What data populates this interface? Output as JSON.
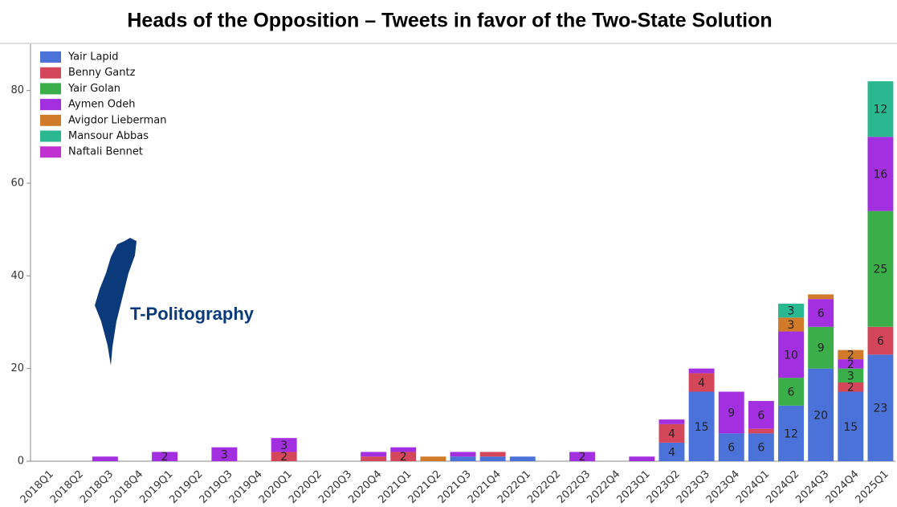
{
  "chart_data": {
    "type": "stacked_bar",
    "title": "Heads of the Opposition – Tweets in favor of the Two-State Solution",
    "logo_text": "T-Politography",
    "categories": [
      "2018Q1",
      "2018Q2",
      "2018Q3",
      "2018Q4",
      "2019Q1",
      "2019Q2",
      "2019Q3",
      "2019Q4",
      "2020Q1",
      "2020Q2",
      "2020Q3",
      "2020Q4",
      "2021Q1",
      "2021Q2",
      "2021Q3",
      "2021Q4",
      "2022Q1",
      "2022Q2",
      "2022Q3",
      "2022Q4",
      "2023Q1",
      "2023Q2",
      "2023Q3",
      "2023Q4",
      "2024Q1",
      "2024Q2",
      "2024Q3",
      "2024Q4",
      "2025Q1"
    ],
    "series": [
      {
        "name": "Yair Lapid",
        "color": "#4a72d8",
        "values": [
          0,
          0,
          0,
          0,
          0,
          0,
          0,
          0,
          0,
          0,
          0,
          0,
          0,
          0,
          1,
          1,
          1,
          0,
          0,
          0,
          0,
          4,
          15,
          6,
          6,
          12,
          20,
          15,
          23
        ]
      },
      {
        "name": "Benny Gantz",
        "color": "#d4475a",
        "values": [
          0,
          0,
          0,
          0,
          0,
          0,
          0,
          0,
          2,
          0,
          0,
          1,
          2,
          0,
          0,
          1,
          0,
          0,
          0,
          0,
          0,
          4,
          4,
          0,
          1,
          0,
          0,
          2,
          6
        ]
      },
      {
        "name": "Yair Golan",
        "color": "#3aae48",
        "values": [
          0,
          0,
          0,
          0,
          0,
          0,
          0,
          0,
          0,
          0,
          0,
          0,
          0,
          0,
          0,
          0,
          0,
          0,
          0,
          0,
          0,
          0,
          0,
          0,
          0,
          6,
          9,
          3,
          25
        ]
      },
      {
        "name": "Aymen Odeh",
        "color": "#a22fe0",
        "values": [
          0,
          0,
          1,
          0,
          2,
          0,
          3,
          0,
          3,
          0,
          0,
          1,
          1,
          0,
          1,
          0,
          0,
          0,
          2,
          0,
          1,
          1,
          1,
          9,
          6,
          10,
          6,
          2,
          16
        ]
      },
      {
        "name": "Avigdor Lieberman",
        "color": "#d07a2a",
        "values": [
          0,
          0,
          0,
          0,
          0,
          0,
          0,
          0,
          0,
          0,
          0,
          0,
          0,
          1,
          0,
          0,
          0,
          0,
          0,
          0,
          0,
          0,
          0,
          0,
          0,
          3,
          1,
          2,
          0
        ]
      },
      {
        "name": "Mansour Abbas",
        "color": "#2ab890",
        "values": [
          0,
          0,
          0,
          0,
          0,
          0,
          0,
          0,
          0,
          0,
          0,
          0,
          0,
          0,
          0,
          0,
          0,
          0,
          0,
          0,
          0,
          0,
          0,
          0,
          0,
          3,
          0,
          0,
          12
        ]
      },
      {
        "name": "Naftali Bennet",
        "color": "#c030d0",
        "values": [
          0,
          0,
          0,
          0,
          0,
          0,
          0,
          0,
          0,
          0,
          0,
          0,
          0,
          0,
          0,
          0,
          0,
          0,
          0,
          0,
          0,
          0,
          0,
          0,
          0,
          0,
          0,
          0,
          0
        ]
      }
    ],
    "ylim": [
      0,
      90
    ],
    "yticks": [
      0,
      20,
      40,
      60,
      80
    ],
    "legend": "upper-left"
  }
}
